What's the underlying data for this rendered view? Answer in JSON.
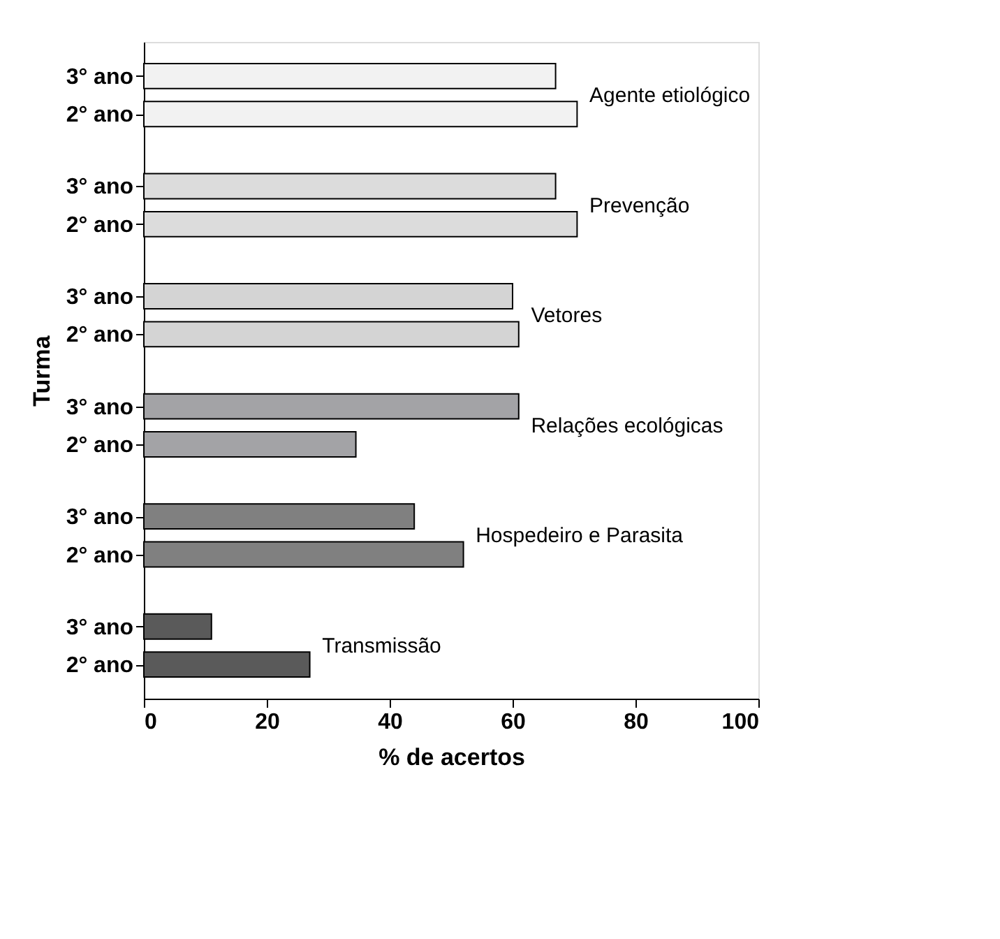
{
  "chart_data": {
    "type": "bar",
    "orientation": "horizontal",
    "xlabel": "% de acertos",
    "ylabel": "Turma",
    "categories": [
      "3° ano",
      "2° ano",
      "3° ano",
      "2° ano",
      "3° ano",
      "2° ano",
      "3° ano",
      "2° ano",
      "3° ano",
      "2° ano",
      "3° ano",
      "2° ano"
    ],
    "values": [
      67,
      70.5,
      67,
      70.5,
      60,
      61,
      61,
      34.5,
      44,
      52,
      11,
      27
    ],
    "colors": [
      "#f2f2f2",
      "#f2f2f2",
      "#dcdcdc",
      "#dcdcdc",
      "#d4d4d4",
      "#d4d4d4",
      "#a3a3a6",
      "#a3a3a6",
      "#808080",
      "#808080",
      "#5a5a5a",
      "#5a5a5a"
    ],
    "annotations": [
      "Agente etiológico",
      "Prevenção",
      "Vetores",
      "Relações ecológicas",
      "Hospedeiro e Parasita",
      "Transmissão"
    ],
    "xlim": [
      0,
      100
    ],
    "xticks": [
      0,
      20,
      40,
      60,
      80,
      100
    ],
    "grid": false
  }
}
